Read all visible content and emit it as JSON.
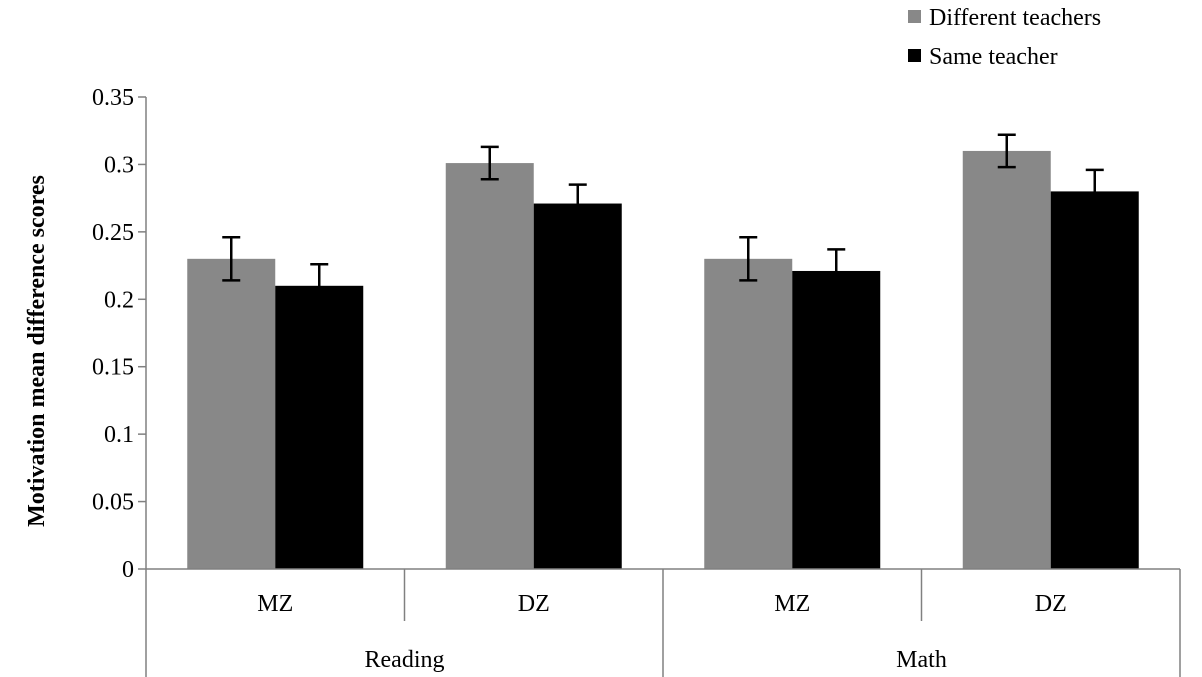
{
  "chart_data": {
    "type": "bar",
    "ylabel": "Motivation mean difference scores",
    "xlabel": "",
    "ylim": [
      0,
      0.35
    ],
    "yticks": [
      0,
      0.05,
      0.1,
      0.15,
      0.2,
      0.25,
      0.3,
      0.35
    ],
    "ytick_labels": [
      "0",
      "0.05",
      "0.1",
      "0.15",
      "0.2",
      "0.25",
      "0.3",
      "0.35"
    ],
    "grid": false,
    "legend_position": "top-right",
    "categories": [
      "MZ",
      "DZ",
      "MZ",
      "DZ"
    ],
    "groups": [
      {
        "label": "Reading",
        "span": 2
      },
      {
        "label": "Math",
        "span": 2
      }
    ],
    "series": [
      {
        "name": "Different teachers",
        "color": "#888888",
        "values": [
          0.23,
          0.301,
          0.23,
          0.31
        ],
        "errors": [
          0.016,
          0.012,
          0.016,
          0.012
        ]
      },
      {
        "name": "Same teacher",
        "color": "#000000",
        "values": [
          0.21,
          0.271,
          0.221,
          0.28
        ],
        "errors": [
          0.016,
          0.014,
          0.016,
          0.016
        ]
      }
    ]
  }
}
